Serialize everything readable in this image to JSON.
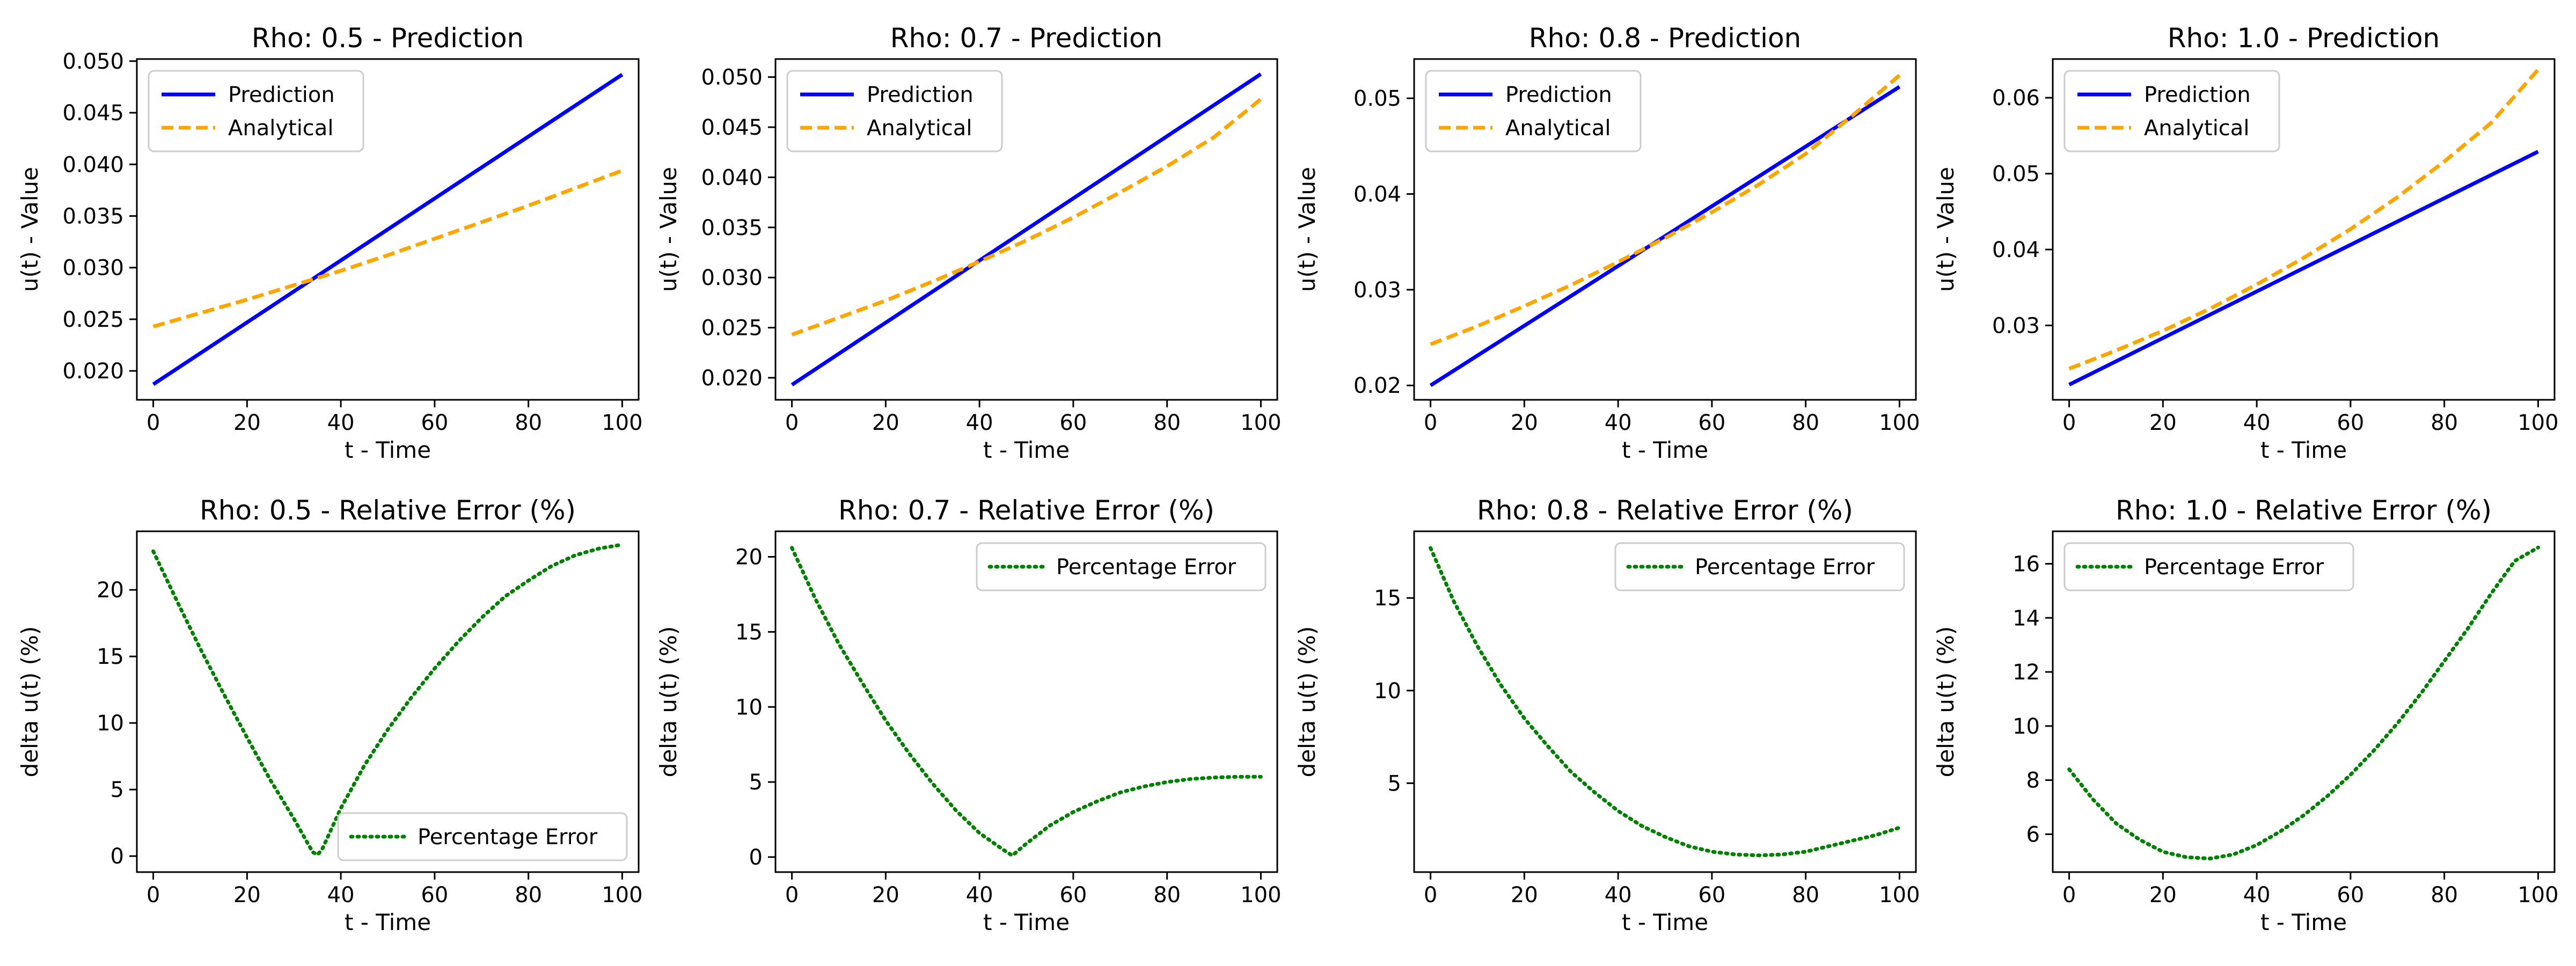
{
  "colors": {
    "prediction": "#0000ff",
    "analytical": "#ffa500",
    "error": "#008000",
    "axes": "#000000",
    "background": "#ffffff"
  },
  "chart_data": [
    {
      "type": "line",
      "title": "Rho: 0.5 - Prediction",
      "xlabel": "t - Time",
      "ylabel": "u(t) - Value",
      "xlim": [
        -3.5,
        103.5
      ],
      "ylim": [
        0.0172,
        0.0502
      ],
      "xticks": [
        0,
        20,
        40,
        60,
        80,
        100
      ],
      "xtick_labels": [
        "0",
        "20",
        "40",
        "60",
        "80",
        "100"
      ],
      "yticks": [
        0.02,
        0.025,
        0.03,
        0.035,
        0.04,
        0.045,
        0.05
      ],
      "ytick_labels": [
        "0.020",
        "0.025",
        "0.030",
        "0.035",
        "0.040",
        "0.045",
        "0.050"
      ],
      "legend": {
        "position": "upper-left"
      },
      "series": [
        {
          "name": "Prediction",
          "style": "solid",
          "color": "#0000ff",
          "x": [
            0,
            100
          ],
          "y": [
            0.0187,
            0.0487
          ]
        },
        {
          "name": "Analytical",
          "style": "dashed",
          "color": "#ffa500",
          "x": [
            0,
            10,
            20,
            30,
            40,
            50,
            60,
            70,
            80,
            90,
            100
          ],
          "y": [
            0.0243,
            0.0256,
            0.0269,
            0.0283,
            0.0297,
            0.0312,
            0.0328,
            0.0344,
            0.036,
            0.0377,
            0.0394
          ]
        }
      ]
    },
    {
      "type": "line",
      "title": "Rho: 0.7 - Prediction",
      "xlabel": "t - Time",
      "ylabel": "u(t) - Value",
      "xlim": [
        -3.5,
        103.5
      ],
      "ylim": [
        0.0178,
        0.0518
      ],
      "xticks": [
        0,
        20,
        40,
        60,
        80,
        100
      ],
      "xtick_labels": [
        "0",
        "20",
        "40",
        "60",
        "80",
        "100"
      ],
      "yticks": [
        0.02,
        0.025,
        0.03,
        0.035,
        0.04,
        0.045,
        0.05
      ],
      "ytick_labels": [
        "0.020",
        "0.025",
        "0.030",
        "0.035",
        "0.040",
        "0.045",
        "0.050"
      ],
      "legend": {
        "position": "upper-left"
      },
      "series": [
        {
          "name": "Prediction",
          "style": "solid",
          "color": "#0000ff",
          "x": [
            0,
            100
          ],
          "y": [
            0.0193,
            0.0503
          ]
        },
        {
          "name": "Analytical",
          "style": "dashed",
          "color": "#ffa500",
          "x": [
            0,
            10,
            20,
            30,
            40,
            50,
            60,
            70,
            80,
            90,
            100
          ],
          "y": [
            0.0243,
            0.026,
            0.0277,
            0.0296,
            0.0316,
            0.0337,
            0.036,
            0.0385,
            0.0411,
            0.044,
            0.0478
          ]
        }
      ]
    },
    {
      "type": "line",
      "title": "Rho: 0.8 - Prediction",
      "xlabel": "t - Time",
      "ylabel": "u(t) - Value",
      "xlim": [
        -3.5,
        103.5
      ],
      "ylim": [
        0.0185,
        0.0541
      ],
      "xticks": [
        0,
        20,
        40,
        60,
        80,
        100
      ],
      "xtick_labels": [
        "0",
        "20",
        "40",
        "60",
        "80",
        "100"
      ],
      "yticks": [
        0.02,
        0.03,
        0.04,
        0.05
      ],
      "ytick_labels": [
        "0.02",
        "0.03",
        "0.04",
        "0.05"
      ],
      "legend": {
        "position": "upper-left"
      },
      "series": [
        {
          "name": "Prediction",
          "style": "solid",
          "color": "#0000ff",
          "x": [
            0,
            100
          ],
          "y": [
            0.02,
            0.0512
          ]
        },
        {
          "name": "Analytical",
          "style": "dashed",
          "color": "#ffa500",
          "x": [
            0,
            10,
            20,
            30,
            40,
            50,
            60,
            70,
            80,
            90,
            100
          ],
          "y": [
            0.0243,
            0.0262,
            0.0283,
            0.0305,
            0.0329,
            0.0354,
            0.0381,
            0.041,
            0.0442,
            0.0482,
            0.0524
          ]
        }
      ]
    },
    {
      "type": "line",
      "title": "Rho: 1.0 - Prediction",
      "xlabel": "t - Time",
      "ylabel": "u(t) - Value",
      "xlim": [
        -3.5,
        103.5
      ],
      "ylim": [
        0.0202,
        0.0651
      ],
      "xticks": [
        0,
        20,
        40,
        60,
        80,
        100
      ],
      "xtick_labels": [
        "0",
        "20",
        "40",
        "60",
        "80",
        "100"
      ],
      "yticks": [
        0.03,
        0.04,
        0.05,
        0.06
      ],
      "ytick_labels": [
        "0.03",
        "0.04",
        "0.05",
        "0.06"
      ],
      "legend": {
        "position": "upper-left"
      },
      "series": [
        {
          "name": "Prediction",
          "style": "solid",
          "color": "#0000ff",
          "x": [
            0,
            100
          ],
          "y": [
            0.0222,
            0.0529
          ]
        },
        {
          "name": "Analytical",
          "style": "dashed",
          "color": "#ffa500",
          "x": [
            0,
            10,
            20,
            30,
            40,
            50,
            60,
            70,
            80,
            90,
            100
          ],
          "y": [
            0.0243,
            0.0267,
            0.0293,
            0.0322,
            0.0354,
            0.0389,
            0.0427,
            0.0469,
            0.0516,
            0.0567,
            0.0637
          ]
        }
      ]
    },
    {
      "type": "line",
      "title": "Rho: 0.5 - Relative Error (%)",
      "xlabel": "t - Time",
      "ylabel": "delta u(t) (%)",
      "xlim": [
        -3.5,
        103.5
      ],
      "ylim": [
        -1.2,
        24.4
      ],
      "xticks": [
        0,
        20,
        40,
        60,
        80,
        100
      ],
      "xtick_labels": [
        "0",
        "20",
        "40",
        "60",
        "80",
        "100"
      ],
      "yticks": [
        0,
        5,
        10,
        15,
        20
      ],
      "ytick_labels": [
        "0",
        "5",
        "10",
        "15",
        "20"
      ],
      "legend": {
        "position": "lower-right"
      },
      "series": [
        {
          "name": "Percentage Error",
          "style": "dotted",
          "color": "#008000",
          "x": [
            0,
            5,
            10,
            15,
            20,
            25,
            30,
            34,
            35,
            36,
            40,
            45,
            50,
            55,
            60,
            65,
            70,
            75,
            80,
            85,
            90,
            95,
            100
          ],
          "y": [
            22.9,
            19.2,
            15.6,
            12.2,
            8.9,
            5.7,
            2.8,
            0.3,
            0.1,
            0.5,
            3.6,
            6.8,
            9.5,
            11.9,
            14.1,
            16.1,
            17.9,
            19.5,
            20.7,
            21.8,
            22.6,
            23.1,
            23.4
          ]
        }
      ]
    },
    {
      "type": "line",
      "title": "Rho: 0.7 - Relative Error (%)",
      "xlabel": "t - Time",
      "ylabel": "delta u(t) (%)",
      "xlim": [
        -3.5,
        103.5
      ],
      "ylim": [
        -1.0,
        21.7
      ],
      "xticks": [
        0,
        20,
        40,
        60,
        80,
        100
      ],
      "xtick_labels": [
        "0",
        "20",
        "40",
        "60",
        "80",
        "100"
      ],
      "yticks": [
        0,
        5,
        10,
        15,
        20
      ],
      "ytick_labels": [
        "0",
        "5",
        "10",
        "15",
        "20"
      ],
      "legend": {
        "position": "upper-right"
      },
      "series": [
        {
          "name": "Percentage Error",
          "style": "dotted",
          "color": "#008000",
          "x": [
            0,
            5,
            10,
            15,
            20,
            25,
            30,
            35,
            40,
            45,
            47,
            50,
            55,
            60,
            65,
            70,
            75,
            80,
            85,
            90,
            95,
            100
          ],
          "y": [
            20.6,
            17.2,
            14.2,
            11.6,
            9.1,
            6.9,
            4.9,
            3.1,
            1.6,
            0.5,
            0.1,
            0.9,
            2.1,
            3.0,
            3.7,
            4.3,
            4.7,
            5.0,
            5.2,
            5.3,
            5.35,
            5.35
          ]
        }
      ]
    },
    {
      "type": "line",
      "title": "Rho: 0.8 - Relative Error (%)",
      "xlabel": "t - Time",
      "ylabel": "delta u(t) (%)",
      "xlim": [
        -3.5,
        103.5
      ],
      "ylim": [
        0.2,
        18.6
      ],
      "xticks": [
        0,
        20,
        40,
        60,
        80,
        100
      ],
      "xtick_labels": [
        "0",
        "20",
        "40",
        "60",
        "80",
        "100"
      ],
      "yticks": [
        5,
        10,
        15
      ],
      "ytick_labels": [
        "5",
        "10",
        "15"
      ],
      "legend": {
        "position": "upper-right"
      },
      "series": [
        {
          "name": "Percentage Error",
          "style": "dotted",
          "color": "#008000",
          "x": [
            0,
            5,
            10,
            15,
            20,
            25,
            30,
            35,
            40,
            45,
            50,
            55,
            60,
            65,
            70,
            75,
            80,
            85,
            90,
            95,
            100
          ],
          "y": [
            17.7,
            14.8,
            12.4,
            10.3,
            8.5,
            7.0,
            5.6,
            4.5,
            3.5,
            2.7,
            2.1,
            1.6,
            1.3,
            1.15,
            1.1,
            1.15,
            1.3,
            1.6,
            1.9,
            2.2,
            2.6
          ]
        }
      ]
    },
    {
      "type": "line",
      "title": "Rho: 1.0 - Relative Error (%)",
      "xlabel": "t - Time",
      "ylabel": "delta u(t) (%)",
      "xlim": [
        -3.5,
        103.5
      ],
      "ylim": [
        4.6,
        17.2
      ],
      "xticks": [
        0,
        20,
        40,
        60,
        80,
        100
      ],
      "xtick_labels": [
        "0",
        "20",
        "40",
        "60",
        "80",
        "100"
      ],
      "yticks": [
        6,
        8,
        10,
        12,
        14,
        16
      ],
      "ytick_labels": [
        "6",
        "8",
        "10",
        "12",
        "14",
        "16"
      ],
      "legend": {
        "position": "upper-left"
      },
      "series": [
        {
          "name": "Percentage Error",
          "style": "dotted",
          "color": "#008000",
          "x": [
            0,
            5,
            10,
            15,
            20,
            25,
            30,
            35,
            40,
            45,
            50,
            55,
            60,
            65,
            70,
            75,
            80,
            85,
            90,
            95,
            100
          ],
          "y": [
            8.4,
            7.3,
            6.4,
            5.8,
            5.35,
            5.15,
            5.1,
            5.25,
            5.6,
            6.1,
            6.7,
            7.4,
            8.2,
            9.1,
            10.1,
            11.2,
            12.4,
            13.6,
            14.9,
            16.1,
            16.6
          ]
        }
      ]
    }
  ]
}
